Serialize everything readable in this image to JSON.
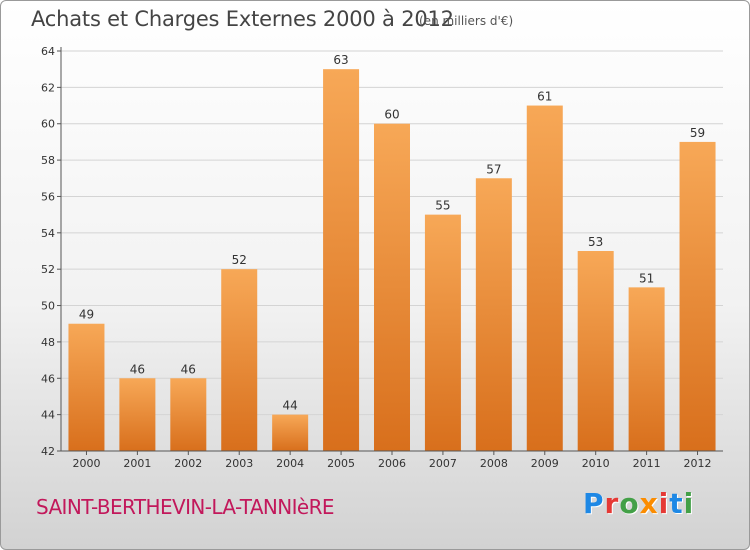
{
  "header": {
    "title": "Achats et Charges Externes 2000 à 2012",
    "subtitle": "(en milliers d'€)"
  },
  "footer": {
    "commune": "SAINT-BERTHEVIN-LA-TANNIèRE",
    "logo": {
      "text": "Proxiti",
      "letter_colors": [
        "#1e88e5",
        "#e53935",
        "#43a047",
        "#fb8c00",
        "#e53935",
        "#1e88e5",
        "#43a047"
      ]
    }
  },
  "colors": {
    "bar_top": "#f7a857",
    "bar_bottom": "#d86f1c",
    "grid": "#d4d4d4",
    "axis": "#555555",
    "text": "#333333"
  },
  "chart_data": {
    "type": "bar",
    "categories": [
      "2000",
      "2001",
      "2002",
      "2003",
      "2004",
      "2005",
      "2006",
      "2007",
      "2008",
      "2009",
      "2010",
      "2011",
      "2012"
    ],
    "values": [
      49,
      46,
      46,
      52,
      44,
      63,
      60,
      55,
      57,
      61,
      53,
      51,
      59
    ],
    "ylim": [
      42,
      64
    ],
    "yticks": [
      42,
      44,
      46,
      48,
      50,
      52,
      54,
      56,
      58,
      60,
      62,
      64
    ],
    "title": "Achats et Charges Externes 2000 à 2012",
    "unit": "(en milliers d'€)",
    "grid": true
  }
}
